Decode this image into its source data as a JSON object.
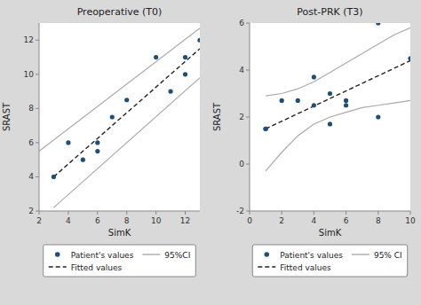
{
  "chart_data": [
    {
      "type": "scatter",
      "title": "Preoperative (T0)",
      "x_label": "SimK",
      "y_label": "SRAST",
      "xlim": [
        2,
        13
      ],
      "ylim": [
        2,
        13
      ],
      "xticks": [
        2,
        4,
        6,
        8,
        10,
        12
      ],
      "yticks": [
        2,
        4,
        6,
        8,
        10,
        12
      ],
      "grid": false,
      "legend": "bottom",
      "series": [
        {
          "name": "Patient's values",
          "type": "scatter",
          "marker": "circle",
          "color": "#1f4e79",
          "x": [
            3,
            4,
            5,
            6,
            6,
            7,
            8,
            10,
            11,
            12,
            12,
            13
          ],
          "values": [
            4,
            6,
            5,
            5.5,
            6,
            7.5,
            8.5,
            11,
            9,
            10,
            11,
            12
          ]
        },
        {
          "name": "95%CI",
          "type": "line",
          "line_style": "solid",
          "color": "#aaaaaa",
          "x": [
            2,
            13
          ],
          "values": [
            5.5,
            12.7
          ]
        },
        {
          "name": "95%CI",
          "type": "line",
          "line_style": "solid",
          "color": "#aaaaaa",
          "x": [
            3,
            13
          ],
          "values": [
            2.2,
            9.8
          ]
        },
        {
          "name": "Fitted values",
          "type": "line",
          "line_style": "dashed",
          "color": "#222222",
          "x": [
            3,
            13
          ],
          "values": [
            4.0,
            11.5
          ]
        }
      ]
    },
    {
      "type": "scatter",
      "title": "Post-PRK (T3)",
      "x_label": "SimK",
      "y_label": "SRAST",
      "xlim": [
        0,
        10
      ],
      "ylim": [
        -2,
        6
      ],
      "xticks": [
        0,
        2,
        4,
        6,
        8,
        10
      ],
      "yticks": [
        -2,
        0,
        2,
        4,
        6
      ],
      "grid": false,
      "legend": "bottom",
      "series": [
        {
          "name": "Patient's values",
          "type": "scatter",
          "marker": "circle",
          "color": "#1f4e79",
          "x": [
            1,
            1,
            2,
            3,
            4,
            4,
            5,
            5,
            6,
            6,
            8,
            8,
            10
          ],
          "values": [
            1.5,
            1.5,
            2.7,
            2.7,
            2.5,
            3.7,
            1.7,
            3.0,
            2.5,
            2.7,
            6.0,
            2.0,
            4.5
          ]
        },
        {
          "name": "95% CI",
          "type": "line",
          "line_style": "solid",
          "color": "#aaaaaa",
          "x": [
            1,
            2,
            3,
            4,
            5,
            6,
            7,
            8,
            9,
            10
          ],
          "values": [
            2.9,
            3.0,
            3.2,
            3.5,
            3.9,
            4.3,
            4.7,
            5.1,
            5.5,
            5.8
          ]
        },
        {
          "name": "95% CI",
          "type": "line",
          "line_style": "solid",
          "color": "#aaaaaa",
          "x": [
            1,
            2,
            3,
            4,
            5,
            6,
            7,
            8,
            9,
            10
          ],
          "values": [
            -0.3,
            0.5,
            1.2,
            1.7,
            2.0,
            2.2,
            2.4,
            2.5,
            2.6,
            2.7
          ]
        },
        {
          "name": "Fitted values",
          "type": "line",
          "line_style": "dashed",
          "color": "#222222",
          "x": [
            1,
            10
          ],
          "values": [
            1.5,
            4.4
          ]
        }
      ]
    }
  ]
}
